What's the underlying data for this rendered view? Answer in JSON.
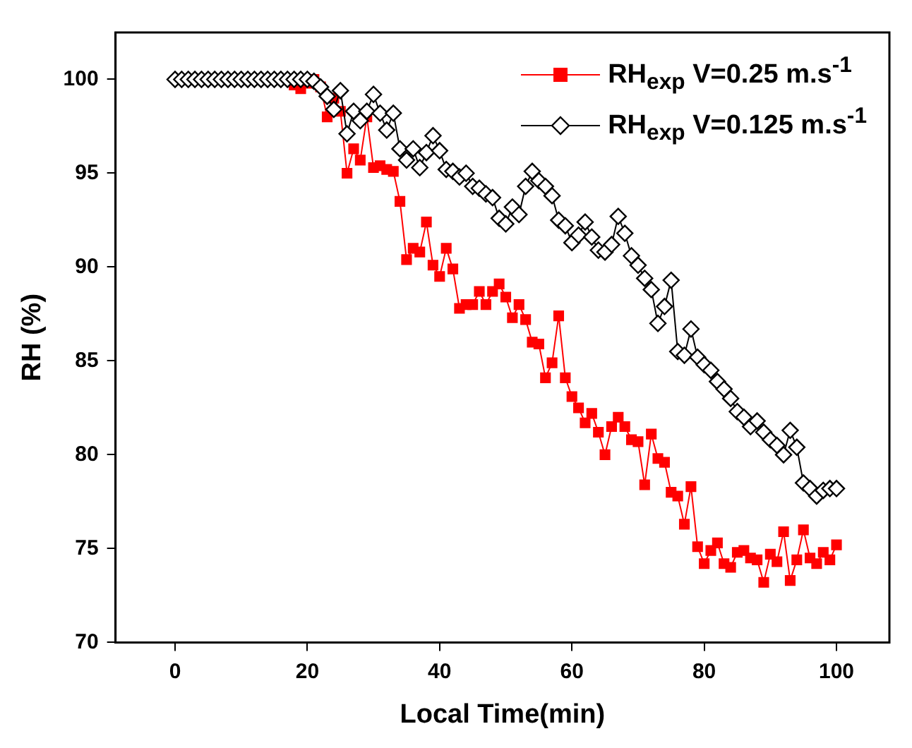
{
  "chart_data": {
    "type": "line",
    "xlabel": "Local Time(min)",
    "ylabel": "RH (%)",
    "xlim": [
      -9,
      108
    ],
    "xticks": [
      0,
      20,
      40,
      60,
      80,
      100
    ],
    "ylim": [
      70,
      102.5
    ],
    "yticks": [
      70,
      75,
      80,
      85,
      90,
      95,
      100
    ],
    "grid": false,
    "legend": "top right",
    "x": [
      0,
      1,
      2,
      3,
      4,
      5,
      6,
      7,
      8,
      9,
      10,
      11,
      12,
      13,
      14,
      15,
      16,
      17,
      18,
      19,
      20,
      21,
      22,
      23,
      24,
      25,
      26,
      27,
      28,
      29,
      30,
      31,
      32,
      33,
      34,
      35,
      36,
      37,
      38,
      39,
      40,
      41,
      42,
      43,
      44,
      45,
      46,
      47,
      48,
      49,
      50,
      51,
      52,
      53,
      54,
      55,
      56,
      57,
      58,
      59,
      60,
      61,
      62,
      63,
      64,
      65,
      66,
      67,
      68,
      69,
      70,
      71,
      72,
      73,
      74,
      75,
      76,
      77,
      78,
      79,
      80,
      81,
      82,
      83,
      84,
      85,
      86,
      87,
      88,
      89,
      90,
      91,
      92,
      93,
      94,
      95,
      96,
      97,
      98,
      99,
      100
    ],
    "series": [
      {
        "name": "RH$_{exp}$ V=0.25 m.s$^{-1}$",
        "color": "#ff0000",
        "marker": "square",
        "values": [
          null,
          null,
          null,
          null,
          null,
          null,
          null,
          null,
          null,
          null,
          null,
          null,
          null,
          null,
          null,
          null,
          null,
          null,
          99.7,
          99.5,
          99.8,
          100,
          99.6,
          98,
          99,
          98.3,
          95,
          96.3,
          95.7,
          98,
          95.3,
          95.4,
          95.2,
          95.1,
          93.5,
          90.4,
          91,
          90.8,
          92.4,
          90.1,
          89.5,
          91,
          89.9,
          87.8,
          88,
          88,
          88.7,
          88,
          88.7,
          89.1,
          88.4,
          87.3,
          88,
          87.2,
          86,
          85.9,
          84.1,
          84.9,
          87.4,
          84.1,
          83.1,
          82.5,
          81.7,
          82.2,
          81.2,
          80,
          81.5,
          82,
          81.5,
          80.8,
          80.7,
          78.4,
          81.1,
          79.8,
          79.6,
          78,
          77.8,
          76.3,
          78.3,
          75.1,
          74.2,
          74.9,
          75.3,
          74.2,
          74,
          74.8,
          74.9,
          74.5,
          74.4,
          73.2,
          74.7,
          74.3,
          75.9,
          73.3,
          74.4,
          76,
          74.5,
          74.2,
          74.8,
          74.4,
          75.2
        ]
      },
      {
        "name": "RH$_{exp}$ V=0.125 m.s$^{-1}$",
        "color": "#000000",
        "marker": "diamond",
        "values": [
          100,
          100,
          100,
          100,
          100,
          100,
          100,
          100,
          100,
          100,
          100,
          100,
          100,
          100,
          100,
          100,
          100,
          100,
          100,
          100,
          100,
          99.9,
          99.6,
          99.1,
          98.4,
          99.4,
          97.1,
          98.3,
          97.8,
          98.3,
          99.2,
          98.2,
          97.3,
          98.2,
          96.3,
          95.7,
          96.3,
          95.3,
          96.1,
          97,
          96.2,
          95.2,
          95.1,
          94.8,
          95,
          94.3,
          94.2,
          93.9,
          93.7,
          92.6,
          92.3,
          93.2,
          92.8,
          94.3,
          95.1,
          94.6,
          94.3,
          93.8,
          92.5,
          92.2,
          91.3,
          91.7,
          92.4,
          91.6,
          90.9,
          90.8,
          91.2,
          92.7,
          91.8,
          90.6,
          90.1,
          89.4,
          88.8,
          87,
          87.9,
          89.3,
          85.5,
          85.3,
          86.7,
          85.2,
          84.8,
          84.5,
          83.9,
          83.5,
          83,
          82.3,
          82,
          81.5,
          81.8,
          81.2,
          80.8,
          80.5,
          80,
          81.3,
          80.4,
          78.5,
          78.2,
          77.8,
          78.1,
          78.2,
          78.2
        ]
      }
    ]
  }
}
